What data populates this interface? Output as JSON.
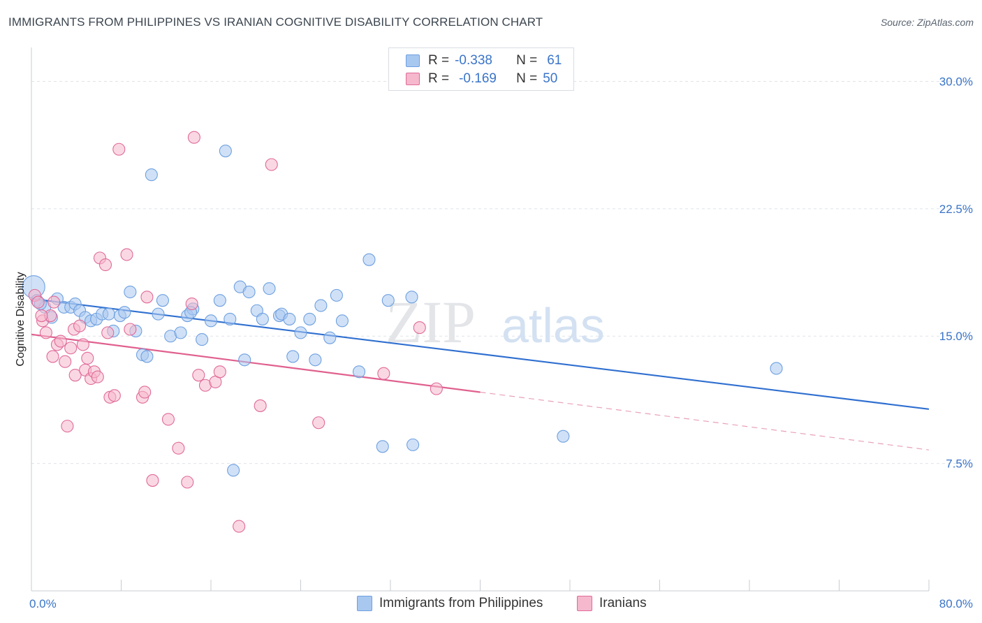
{
  "header": {
    "title": "IMMIGRANTS FROM PHILIPPINES VS IRANIAN COGNITIVE DISABILITY CORRELATION CHART",
    "source": "Source: ZipAtlas.com"
  },
  "legend": {
    "rows": [
      {
        "r_label": "R =",
        "r_value": "-0.338",
        "n_label": "N =",
        "n_value": "61",
        "color": "#a9c8f0"
      },
      {
        "r_label": "R =",
        "r_value": "-0.169",
        "n_label": "N =",
        "n_value": "50",
        "color": "#f5b8cc"
      }
    ]
  },
  "bottom_legend": {
    "items": [
      {
        "label": "Immigrants from Philippines",
        "color": "#a9c8f0"
      },
      {
        "label": "Iranians",
        "color": "#f5b8cc"
      }
    ]
  },
  "watermark": {
    "zip": "ZIP",
    "atlas": "atlas"
  },
  "chart_data": {
    "type": "scatter",
    "title": "IMMIGRANTS FROM PHILIPPINES VS IRANIAN COGNITIVE DISABILITY CORRELATION CHART",
    "xlabel": "",
    "ylabel": "Cognitive Disability",
    "xlim": [
      0,
      80
    ],
    "ylim": [
      0,
      31.5
    ],
    "x_tick_labels": [
      "0.0%",
      "80.0%"
    ],
    "y_ticks": [
      7.5,
      15.0,
      22.5,
      30.0
    ],
    "y_tick_labels": [
      "7.5%",
      "15.0%",
      "22.5%",
      "30.0%"
    ],
    "grid": true,
    "legend_position": "top-center",
    "series": [
      {
        "name": "Immigrants from Philippines",
        "color": "#6ea0e0",
        "fill": "#a9c8f0",
        "trend": {
          "x": [
            0,
            80
          ],
          "y": [
            17.2,
            10.7
          ]
        },
        "points": [
          [
            0.2,
            17.9
          ],
          [
            0.5,
            17.1
          ],
          [
            1.2,
            16.7
          ],
          [
            1.8,
            16.1
          ],
          [
            2.3,
            17.2
          ],
          [
            2.9,
            16.7
          ],
          [
            3.5,
            16.7
          ],
          [
            3.9,
            16.9
          ],
          [
            4.3,
            16.5
          ],
          [
            4.8,
            16.1
          ],
          [
            5.3,
            15.9
          ],
          [
            5.8,
            16.0
          ],
          [
            6.3,
            16.3
          ],
          [
            6.9,
            16.3
          ],
          [
            7.3,
            15.3
          ],
          [
            7.9,
            16.2
          ],
          [
            8.3,
            16.4
          ],
          [
            8.8,
            17.6
          ],
          [
            9.3,
            15.3
          ],
          [
            9.9,
            13.9
          ],
          [
            10.3,
            13.8
          ],
          [
            10.7,
            24.5
          ],
          [
            11.3,
            16.3
          ],
          [
            11.7,
            17.1
          ],
          [
            12.4,
            15.0
          ],
          [
            13.3,
            15.2
          ],
          [
            13.9,
            16.2
          ],
          [
            14.4,
            16.6
          ],
          [
            15.2,
            14.8
          ],
          [
            16.0,
            15.9
          ],
          [
            16.8,
            17.1
          ],
          [
            17.3,
            25.9
          ],
          [
            17.7,
            16.0
          ],
          [
            18.0,
            7.1
          ],
          [
            18.6,
            17.9
          ],
          [
            19.4,
            17.6
          ],
          [
            19.0,
            13.6
          ],
          [
            20.1,
            16.5
          ],
          [
            20.6,
            16.0
          ],
          [
            21.2,
            17.8
          ],
          [
            22.1,
            16.2
          ],
          [
            22.3,
            16.3
          ],
          [
            23.0,
            16.0
          ],
          [
            23.3,
            13.8
          ],
          [
            24.0,
            15.2
          ],
          [
            24.8,
            16.0
          ],
          [
            25.3,
            13.6
          ],
          [
            25.8,
            16.8
          ],
          [
            26.6,
            14.9
          ],
          [
            27.2,
            17.4
          ],
          [
            27.7,
            15.9
          ],
          [
            29.2,
            12.9
          ],
          [
            30.1,
            19.5
          ],
          [
            31.3,
            8.5
          ],
          [
            31.8,
            17.1
          ],
          [
            34.0,
            8.6
          ],
          [
            33.9,
            17.3
          ],
          [
            47.4,
            9.1
          ],
          [
            66.4,
            13.1
          ],
          [
            0.8,
            16.9
          ],
          [
            14.2,
            16.4
          ]
        ]
      },
      {
        "name": "Iranians",
        "color": "#e06a98",
        "fill": "#f5b8cc",
        "trend": {
          "x": [
            0,
            40
          ],
          "y": [
            15.1,
            11.7
          ]
        },
        "trend_dashed": {
          "x": [
            40,
            80
          ],
          "y": [
            11.7,
            8.3
          ]
        },
        "points": [
          [
            0.3,
            17.4
          ],
          [
            0.6,
            17.0
          ],
          [
            1.0,
            15.9
          ],
          [
            1.3,
            15.2
          ],
          [
            1.7,
            16.2
          ],
          [
            1.9,
            13.8
          ],
          [
            2.3,
            14.5
          ],
          [
            2.6,
            14.7
          ],
          [
            3.0,
            13.5
          ],
          [
            3.2,
            9.7
          ],
          [
            3.5,
            14.3
          ],
          [
            3.8,
            15.4
          ],
          [
            3.9,
            12.7
          ],
          [
            4.3,
            15.6
          ],
          [
            4.6,
            14.5
          ],
          [
            4.8,
            13.0
          ],
          [
            5.0,
            13.7
          ],
          [
            5.3,
            12.5
          ],
          [
            5.6,
            12.9
          ],
          [
            5.9,
            12.6
          ],
          [
            6.1,
            19.6
          ],
          [
            6.6,
            19.2
          ],
          [
            6.8,
            15.2
          ],
          [
            7.0,
            11.4
          ],
          [
            7.4,
            11.5
          ],
          [
            7.8,
            26.0
          ],
          [
            8.5,
            19.8
          ],
          [
            8.8,
            15.4
          ],
          [
            9.9,
            11.4
          ],
          [
            10.1,
            11.7
          ],
          [
            10.3,
            17.3
          ],
          [
            10.8,
            6.5
          ],
          [
            12.2,
            10.1
          ],
          [
            13.1,
            8.4
          ],
          [
            13.9,
            6.4
          ],
          [
            14.3,
            16.9
          ],
          [
            14.5,
            26.7
          ],
          [
            14.9,
            12.7
          ],
          [
            15.5,
            12.1
          ],
          [
            16.4,
            12.3
          ],
          [
            16.8,
            12.9
          ],
          [
            18.5,
            3.8
          ],
          [
            20.4,
            10.9
          ],
          [
            21.4,
            25.1
          ],
          [
            25.6,
            9.9
          ],
          [
            31.4,
            12.8
          ],
          [
            34.6,
            15.5
          ],
          [
            36.1,
            11.9
          ],
          [
            0.9,
            16.2
          ],
          [
            2.0,
            17.0
          ]
        ]
      }
    ]
  }
}
